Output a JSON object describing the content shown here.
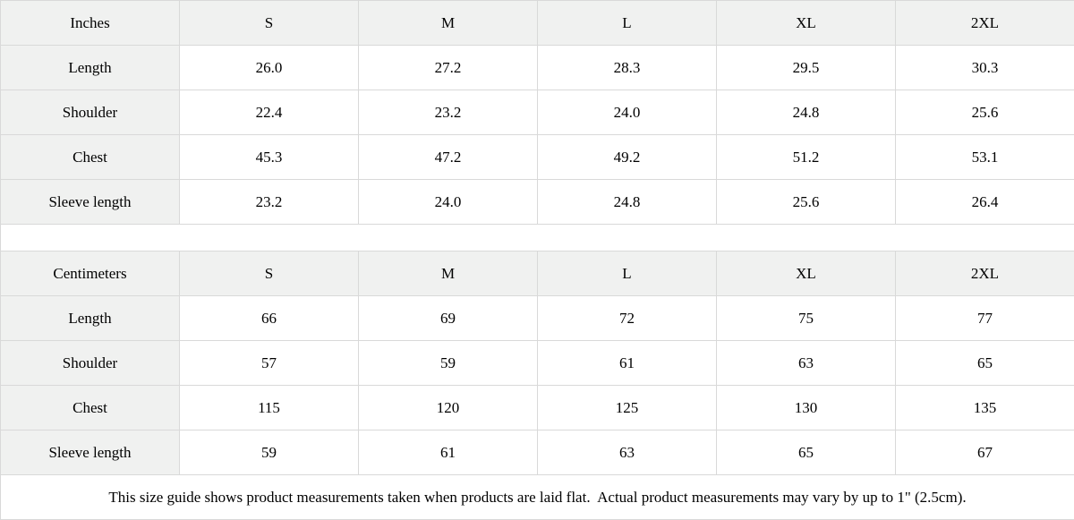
{
  "tables": [
    {
      "unit_label": "Inches",
      "sizes": [
        "S",
        "M",
        "L",
        "XL",
        "2XL"
      ],
      "rows": [
        {
          "label": "Length",
          "values": [
            "26.0",
            "27.2",
            "28.3",
            "29.5",
            "30.3"
          ]
        },
        {
          "label": "Shoulder",
          "values": [
            "22.4",
            "23.2",
            "24.0",
            "24.8",
            "25.6"
          ]
        },
        {
          "label": "Chest",
          "values": [
            "45.3",
            "47.2",
            "49.2",
            "51.2",
            "53.1"
          ]
        },
        {
          "label": "Sleeve length",
          "values": [
            "23.2",
            "24.0",
            "24.8",
            "25.6",
            "26.4"
          ]
        }
      ]
    },
    {
      "unit_label": "Centimeters",
      "sizes": [
        "S",
        "M",
        "L",
        "XL",
        "2XL"
      ],
      "rows": [
        {
          "label": "Length",
          "values": [
            "66",
            "69",
            "72",
            "75",
            "77"
          ]
        },
        {
          "label": "Shoulder",
          "values": [
            "57",
            "59",
            "61",
            "63",
            "65"
          ]
        },
        {
          "label": "Chest",
          "values": [
            "115",
            "120",
            "125",
            "130",
            "135"
          ]
        },
        {
          "label": "Sleeve length",
          "values": [
            "59",
            "61",
            "63",
            "65",
            "67"
          ]
        }
      ]
    }
  ],
  "footnote": "This size guide shows product measurements taken when products are laid flat.  Actual product measurements may vary by up to 1\" (2.5cm).",
  "colors": {
    "label_bg": "#f0f1f0",
    "border": "#d9d9d9",
    "text": "#000000",
    "background": "#ffffff"
  }
}
